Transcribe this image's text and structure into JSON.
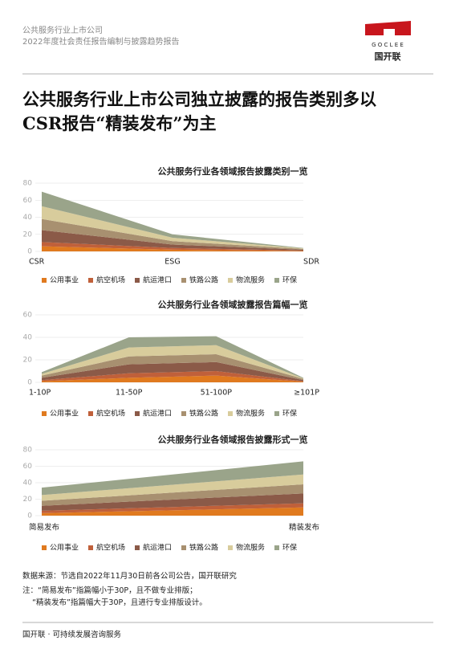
{
  "header": {
    "line1": "公共服务行业上市公司",
    "line2": "2022年度社会责任报告编制与披露趋势报告",
    "logo_en": "G O C L E E",
    "logo_cn": "国开联"
  },
  "headline": {
    "line1": "公共服务行业上市公司独立披露的报告类别多以",
    "line2": "CSR报告“精装发布”为主"
  },
  "chart_data": [
    {
      "type": "stacked_area",
      "title": "公共服务行业各领域报告披露类别一览",
      "categories": [
        "CSR",
        "ESG",
        "SDR"
      ],
      "ylim": [
        0,
        80
      ],
      "yticks": [
        0,
        20,
        40,
        60,
        80
      ],
      "grid": true,
      "series": [
        {
          "name": "公用事业",
          "color": "#e07a1f",
          "values": [
            6,
            2,
            0.5
          ]
        },
        {
          "name": "航空机场",
          "color": "#c0603a",
          "values": [
            5,
            2,
            0.5
          ]
        },
        {
          "name": "航运港口",
          "color": "#8b5a48",
          "values": [
            14,
            4,
            1
          ]
        },
        {
          "name": "铁路公路",
          "color": "#a89070",
          "values": [
            13,
            4,
            1
          ]
        },
        {
          "name": "物流服务",
          "color": "#d8cc9c",
          "values": [
            15,
            4,
            0.5
          ]
        },
        {
          "name": "环保",
          "color": "#9aa48a",
          "values": [
            17,
            4,
            0.5
          ]
        }
      ]
    },
    {
      "type": "stacked_area",
      "title": "公共服务行业各领域披露报告篇幅一览",
      "categories": [
        "1-10P",
        "11-50P",
        "51-100P",
        "≥101P"
      ],
      "ylim": [
        0,
        60
      ],
      "yticks": [
        0,
        20,
        40,
        60
      ],
      "grid": true,
      "series": [
        {
          "name": "公用事业",
          "color": "#e07a1f",
          "values": [
            1,
            4,
            6,
            0.5
          ]
        },
        {
          "name": "航空机场",
          "color": "#c0603a",
          "values": [
            1,
            4,
            4,
            0.5
          ]
        },
        {
          "name": "航运港口",
          "color": "#8b5a48",
          "values": [
            2,
            8,
            8,
            1
          ]
        },
        {
          "name": "铁路公路",
          "color": "#a89070",
          "values": [
            2,
            7,
            7,
            1
          ]
        },
        {
          "name": "物流服务",
          "color": "#d8cc9c",
          "values": [
            1.5,
            8,
            8,
            0.5
          ]
        },
        {
          "name": "环保",
          "color": "#9aa48a",
          "values": [
            1.5,
            9,
            8,
            0.5
          ]
        }
      ]
    },
    {
      "type": "stacked_area",
      "title": "公共服务行业各领域报告披露形式一览",
      "categories": [
        "简易发布",
        "精装发布"
      ],
      "ylim": [
        0,
        80
      ],
      "yticks": [
        0,
        20,
        40,
        60,
        80
      ],
      "grid": true,
      "series": [
        {
          "name": "公用事业",
          "color": "#e07a1f",
          "values": [
            3,
            10
          ]
        },
        {
          "name": "航空机场",
          "color": "#c0603a",
          "values": [
            3,
            5
          ]
        },
        {
          "name": "航运港口",
          "color": "#8b5a48",
          "values": [
            6,
            12
          ]
        },
        {
          "name": "铁路公路",
          "color": "#a89070",
          "values": [
            6,
            11
          ]
        },
        {
          "name": "物流服务",
          "color": "#d8cc9c",
          "values": [
            7,
            12
          ]
        },
        {
          "name": "环保",
          "color": "#9aa48a",
          "values": [
            9,
            16
          ]
        }
      ]
    }
  ],
  "notes": {
    "source": "数据来源：节选自2022年11月30日前各公司公告，国开联研究",
    "note1": "注：“简易发布”指篇幅小于30P，且不做专业排版；",
    "note2": "    “精装发布”指篇幅大于30P，且进行专业排版设计。"
  },
  "footer": "国开联 · 可持续发展咨询服务"
}
